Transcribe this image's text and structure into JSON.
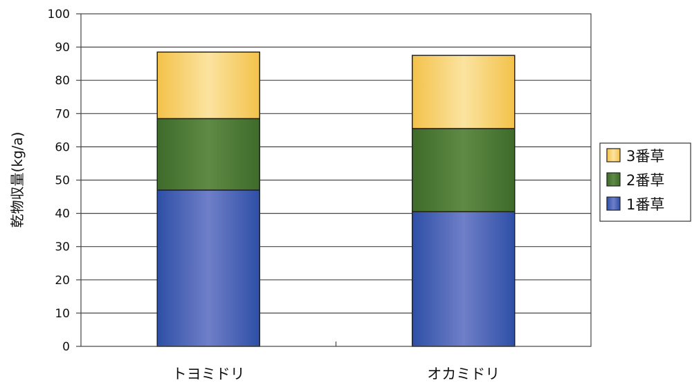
{
  "chart_data": {
    "type": "bar",
    "stacked": true,
    "ylabel": "乾物収量(kg/a)",
    "ylim": [
      0,
      100
    ],
    "yticks": [
      0,
      10,
      20,
      30,
      40,
      50,
      60,
      70,
      80,
      90,
      100
    ],
    "categories": [
      "トヨミドリ",
      "オカミドリ"
    ],
    "series": [
      {
        "name": "1番草",
        "values": [
          47,
          40.5
        ],
        "color": "#3a5fb8"
      },
      {
        "name": "2番草",
        "values": [
          21.5,
          25
        ],
        "color": "#4f7d35"
      },
      {
        "name": "3番草",
        "values": [
          20,
          22
        ],
        "color": "#f4cd62"
      }
    ],
    "legend": {
      "position": "right",
      "order": [
        "3番草",
        "2番草",
        "1番草"
      ]
    },
    "grid": true
  }
}
